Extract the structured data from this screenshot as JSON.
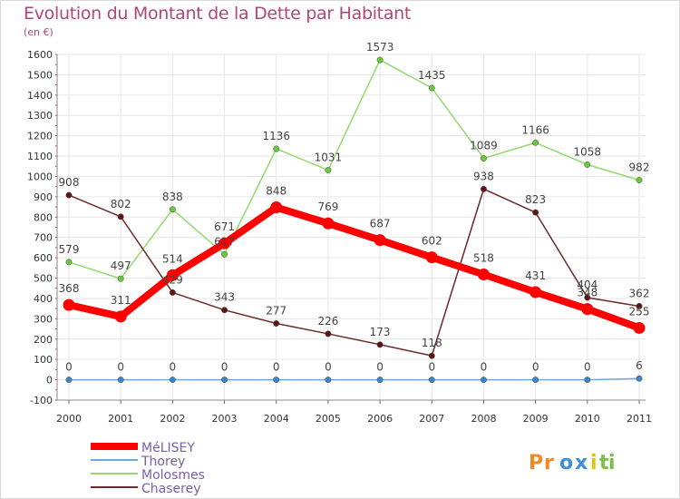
{
  "header": {
    "title": "Evolution du Montant de la Dette par Habitant",
    "unit": "(en €)"
  },
  "logo": {
    "text": "Proxiti"
  },
  "chart_data": {
    "type": "line",
    "title": "Evolution du Montant de la Dette par Habitant",
    "subtitle": "(en €)",
    "x": [
      "2000",
      "2001",
      "2002",
      "2003",
      "2004",
      "2005",
      "2006",
      "2007",
      "2008",
      "2009",
      "2010",
      "2011"
    ],
    "ylim": [
      -100,
      1600
    ],
    "yticks": [
      "-100",
      "0",
      "100",
      "200",
      "300",
      "400",
      "500",
      "600",
      "700",
      "800",
      "900",
      "1000",
      "1100",
      "1200",
      "1300",
      "1400",
      "1500",
      "1600"
    ],
    "grid": true,
    "legend_position": "bottom-left",
    "series": [
      {
        "name": "MéLISEY",
        "color": "#ff0000",
        "marker": "#ff0000",
        "emphasis": true,
        "values": [
          368,
          311,
          514,
          671,
          848,
          769,
          687,
          602,
          518,
          431,
          348,
          255
        ],
        "labels": [
          "368",
          "311",
          "514",
          "671",
          "848",
          "769",
          "687",
          "602",
          "518",
          "431",
          "348",
          "255"
        ]
      },
      {
        "name": "Thorey",
        "color": "#6fa8dc",
        "marker": "#3d85c6",
        "emphasis": false,
        "values": [
          0,
          0,
          0,
          0,
          0,
          0,
          0,
          0,
          0,
          0,
          0,
          6
        ],
        "labels": [
          "0",
          "0",
          "0",
          "0",
          "0",
          "0",
          "0",
          "0",
          "0",
          "0",
          "0",
          "6"
        ]
      },
      {
        "name": "Molosmes",
        "color": "#93d96f",
        "marker": "#6ac93a",
        "emphasis": false,
        "values": [
          579,
          497,
          838,
          617,
          1136,
          1031,
          1573,
          1435,
          1089,
          1166,
          1058,
          982
        ],
        "labels": [
          "579",
          "497",
          "838",
          "617",
          "1136",
          "1031",
          "1573",
          "1435",
          "1089",
          "1166",
          "1058",
          "982"
        ]
      },
      {
        "name": "Chaserey",
        "color": "#6b2a2a",
        "marker": "#5e1414",
        "emphasis": false,
        "values": [
          908,
          802,
          429,
          343,
          277,
          226,
          173,
          118,
          938,
          823,
          404,
          362
        ],
        "labels": [
          "908",
          "802",
          "429",
          "343",
          "277",
          "226",
          "173",
          "118",
          "938",
          "823",
          "404",
          "362"
        ]
      }
    ]
  }
}
